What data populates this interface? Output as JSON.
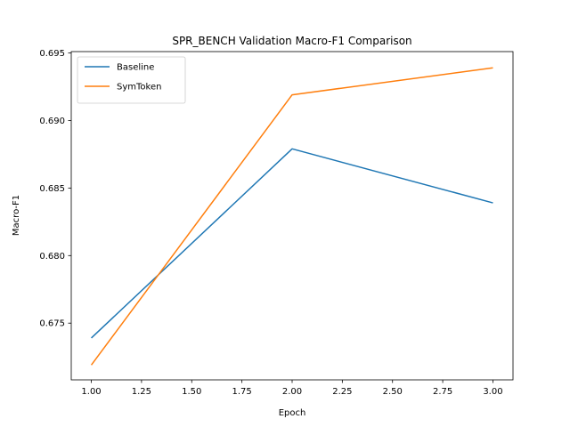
{
  "chart_data": {
    "type": "line",
    "title": "SPR_BENCH Validation Macro-F1 Comparison",
    "xlabel": "Epoch",
    "ylabel": "Macro-F1",
    "xlim": [
      0.9,
      3.1
    ],
    "ylim": [
      0.6708,
      0.6951
    ],
    "xticks": [
      1.0,
      1.25,
      1.5,
      1.75,
      2.0,
      2.25,
      2.5,
      2.75,
      3.0
    ],
    "xtick_labels": [
      "1.00",
      "1.25",
      "1.50",
      "1.75",
      "2.00",
      "2.25",
      "2.50",
      "2.75",
      "3.00"
    ],
    "yticks": [
      0.675,
      0.68,
      0.685,
      0.69,
      0.695
    ],
    "ytick_labels": [
      "0.675",
      "0.680",
      "0.685",
      "0.690",
      "0.695"
    ],
    "grid": false,
    "legend_position": "top-left",
    "x": [
      1,
      2,
      3
    ],
    "series": [
      {
        "name": "Baseline",
        "color": "#1f77b4",
        "values": [
          0.6739,
          0.6879,
          0.6839
        ]
      },
      {
        "name": "SymToken",
        "color": "#ff7f0e",
        "values": [
          0.6719,
          0.6919,
          0.6939
        ]
      }
    ]
  }
}
